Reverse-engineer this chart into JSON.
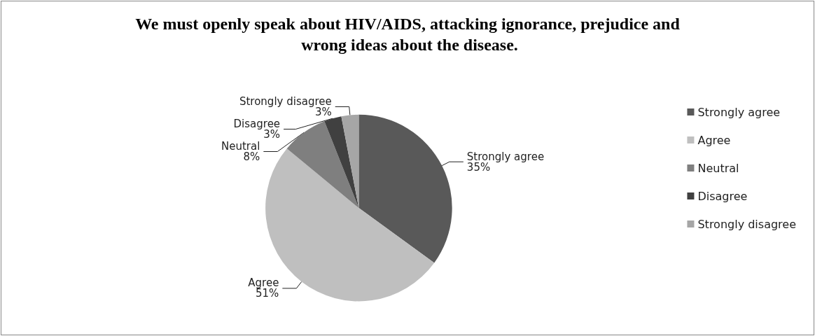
{
  "chart_data": {
    "type": "pie",
    "title": "We must openly speak about HIV/AIDS, attacking ignorance, prejudice and wrong ideas about the disease.",
    "categories": [
      "Strongly agree",
      "Agree",
      "Neutral",
      "Disagree",
      "Strongly disagree"
    ],
    "values": [
      35,
      51,
      8,
      3,
      3
    ],
    "value_labels": [
      "35%",
      "51%",
      "8%",
      "3%",
      "3%"
    ],
    "colors": [
      "#595959",
      "#bfbfbf",
      "#7f7f7f",
      "#404040",
      "#a6a6a6"
    ],
    "legend": "right"
  }
}
